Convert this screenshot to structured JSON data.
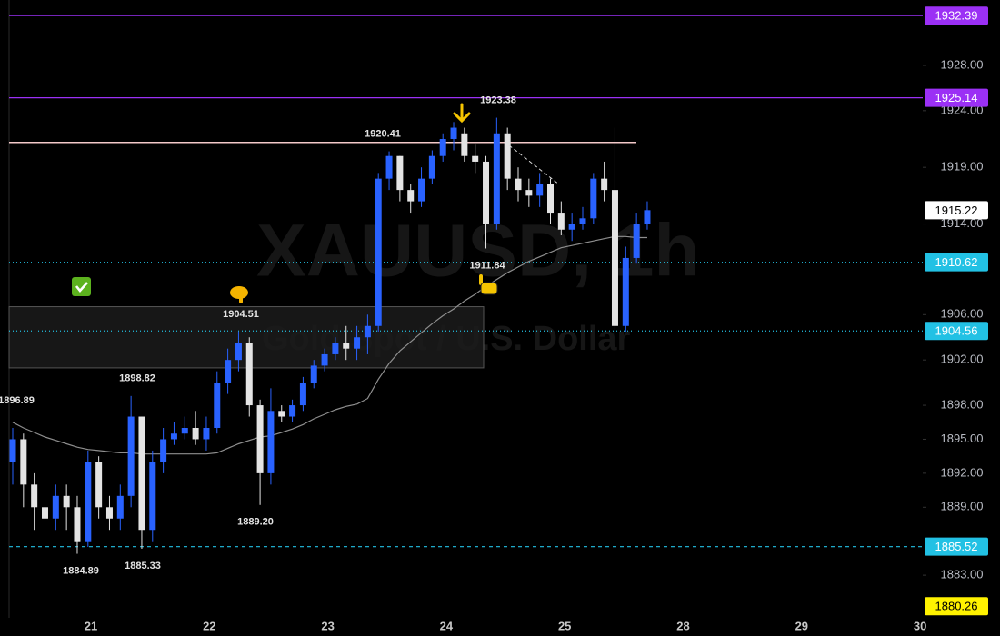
{
  "chart_data": {
    "type": "candlestick",
    "watermark": {
      "symbol": "XAUUSD, 1h",
      "description": "Gold Spot / U.S. Dollar"
    },
    "ylim": [
      1879.24,
      1933.77
    ],
    "yticks": [
      {
        "value": 1928,
        "label": "1928.00"
      },
      {
        "value": 1924,
        "label": "1924.00"
      },
      {
        "value": 1919,
        "label": "1919.00"
      },
      {
        "value": 1914,
        "label": "1914.00"
      },
      {
        "value": 1906,
        "label": "1906.00"
      },
      {
        "value": 1902,
        "label": "1902.00"
      },
      {
        "value": 1898,
        "label": "1898.00"
      },
      {
        "value": 1895,
        "label": "1895.00"
      },
      {
        "value": 1892,
        "label": "1892.00"
      },
      {
        "value": 1889,
        "label": "1889.00"
      },
      {
        "value": 1883,
        "label": "1883.00"
      }
    ],
    "time_labels": [
      "21",
      "22",
      "23",
      "24",
      "25",
      "28",
      "29",
      "30"
    ],
    "up_color": "#2962ff",
    "down_color": "#e4e4e4",
    "candles": {
      "open": [
        1893,
        1895,
        1891,
        1889,
        1888,
        1890,
        1889,
        1886,
        1893,
        1889,
        1888,
        1890,
        1897,
        1887,
        1893,
        1895,
        1895.5,
        1896,
        1895,
        1896,
        1900,
        1902,
        1903.5,
        1898,
        1892,
        1897.5,
        1897,
        1898,
        1900,
        1901.5,
        1902.5,
        1903.5,
        1903,
        1904,
        1905,
        1918,
        1920,
        1917,
        1916,
        1918,
        1920,
        1921.5,
        1922,
        1920,
        1919.5,
        1914,
        1922,
        1918,
        1917,
        1916.5,
        1917.5,
        1915,
        1913.5,
        1914,
        1914.5,
        1918,
        1917,
        1905,
        1911,
        1914
      ],
      "high": [
        1896,
        1895.5,
        1892,
        1890,
        1891,
        1891,
        1890,
        1894,
        1893.5,
        1890,
        1891,
        1898.82,
        1897,
        1894,
        1896,
        1896.5,
        1897,
        1897.5,
        1897,
        1901,
        1903,
        1904.51,
        1904,
        1898.5,
        1899.5,
        1898,
        1898.5,
        1900.5,
        1902,
        1903,
        1904,
        1905,
        1905,
        1906,
        1918.5,
        1920.41,
        1920,
        1917.5,
        1919,
        1920.5,
        1922,
        1923,
        1922.5,
        1921,
        1920,
        1923.38,
        1922.5,
        1919,
        1918,
        1918.5,
        1918,
        1916,
        1915,
        1915.5,
        1918.5,
        1919.5,
        1922.5,
        1912,
        1915,
        1916
      ],
      "low": [
        1891,
        1889,
        1887,
        1886.5,
        1887,
        1887,
        1884.89,
        1885.5,
        1888,
        1887,
        1887,
        1889,
        1885.33,
        1886,
        1892,
        1894.5,
        1895,
        1894.5,
        1894,
        1895.5,
        1899,
        1901,
        1897,
        1889.2,
        1891,
        1896.5,
        1896.5,
        1897.5,
        1899.5,
        1901,
        1902,
        1902,
        1902,
        1902.5,
        1904.5,
        1917,
        1916,
        1915,
        1915.5,
        1917.5,
        1919.5,
        1920.5,
        1919.5,
        1918.5,
        1911.84,
        1913.5,
        1917,
        1916,
        1915.5,
        1915.5,
        1914,
        1913,
        1912.5,
        1913.5,
        1914,
        1916,
        1904.2,
        1904.5,
        1910.5,
        1913.5
      ],
      "close": [
        1895,
        1891,
        1889,
        1888,
        1890,
        1889,
        1886,
        1893,
        1889,
        1888,
        1890,
        1897,
        1887,
        1893,
        1895,
        1895.5,
        1896,
        1895,
        1896,
        1900,
        1902,
        1903.5,
        1898,
        1892,
        1897.5,
        1897,
        1898,
        1900,
        1901.5,
        1902.5,
        1903.5,
        1903,
        1904,
        1905,
        1918,
        1920,
        1917,
        1916,
        1918,
        1920,
        1921.5,
        1922.5,
        1920,
        1919.5,
        1914,
        1922,
        1918,
        1917,
        1916.5,
        1917.5,
        1915,
        1913.5,
        1914,
        1914.5,
        1918,
        1917,
        1905,
        1911,
        1914,
        1915.22
      ]
    },
    "moving_average": {
      "color": "#8e8e8e",
      "values": [
        1896.5,
        1896.0,
        1895.6,
        1895.2,
        1894.9,
        1894.6,
        1894.3,
        1894.1,
        1894.0,
        1893.9,
        1893.8,
        1893.8,
        1893.7,
        1893.7,
        1893.7,
        1893.7,
        1893.7,
        1893.7,
        1893.7,
        1893.8,
        1894.2,
        1894.6,
        1894.9,
        1895.2,
        1895.3,
        1895.6,
        1895.9,
        1896.3,
        1896.8,
        1897.2,
        1897.6,
        1897.9,
        1898.1,
        1898.6,
        1900.3,
        1901.7,
        1902.8,
        1903.6,
        1904.4,
        1905.2,
        1905.9,
        1906.5,
        1907.2,
        1907.8,
        1908.5,
        1909.1,
        1909.7,
        1910.2,
        1910.7,
        1911.1,
        1911.5,
        1911.9,
        1912.1,
        1912.3,
        1912.5,
        1912.7,
        1912.9,
        1912.9,
        1912.8,
        1912.8
      ]
    },
    "last_price_color": "#ffffff",
    "zone": {
      "top": 1906.7,
      "bottom": 1901.3,
      "color": "#1b1b1b",
      "border": "#555555"
    },
    "resistance_line": {
      "value": 1921.2,
      "color": "#f3c9c9"
    },
    "levels": [
      {
        "value": 1932.39,
        "color": "#9b30f5",
        "text_color": "#ffffff",
        "style": "solid"
      },
      {
        "value": 1925.14,
        "color": "#9b30f5",
        "text_color": "#ffffff",
        "style": "solid"
      },
      {
        "value": 1910.62,
        "color": "#22c1e4",
        "text_color": "#ffffff",
        "style": "dotted"
      },
      {
        "value": 1904.56,
        "color": "#22c1e4",
        "text_color": "#ffffff",
        "style": "dotted"
      },
      {
        "value": 1885.52,
        "color": "#22c1e4",
        "text_color": "#ffffff",
        "style": "dashed"
      },
      {
        "value": 1880.26,
        "color": "#fff200",
        "text_color": "#000000",
        "style": "none"
      }
    ],
    "annotations": [
      1920.41,
      1923.38,
      1911.84,
      1904.51,
      1898.82,
      1896.89,
      {
        "value": 1889.2,
        "label": "1889.20"
      },
      1884.89,
      1885.33
    ]
  }
}
